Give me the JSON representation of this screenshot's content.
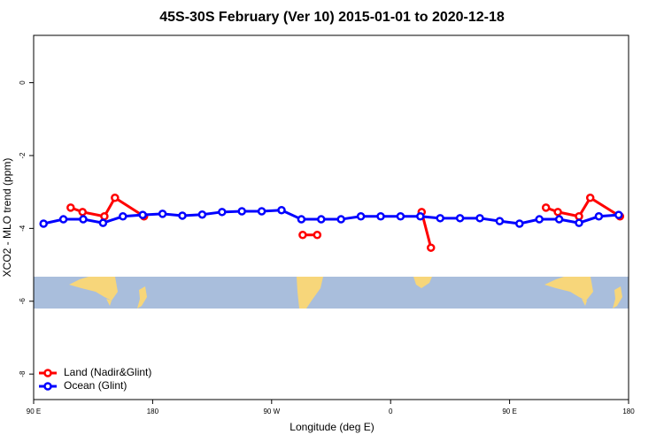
{
  "chart_data": {
    "type": "line",
    "title": "45S-30S February (Ver 10)   2015-01-01 to 2020-12-18",
    "x_label": "Longitude (deg E)",
    "y_label": "XCO2 - MLO trend (ppm)",
    "xlim": [
      90,
      540
    ],
    "xticks": [
      {
        "value": 90,
        "label": "90 E"
      },
      {
        "value": 180,
        "label": "180"
      },
      {
        "value": 270,
        "label": "90 W"
      },
      {
        "value": 360,
        "label": "0"
      },
      {
        "value": 450,
        "label": "90 E"
      },
      {
        "value": 540,
        "label": "180"
      }
    ],
    "ylim": [
      -8.7,
      1.3
    ],
    "yticks": [
      0,
      -2,
      -4,
      -6,
      -8
    ],
    "legend": "bottom-left",
    "series": [
      {
        "name": "Land (Nadir&Glint)",
        "color": "#ff0000",
        "x": [
          118,
          127,
          143.5,
          151.5,
          173.5,
          null,
          293.5,
          304.5,
          null,
          383.5,
          390.5,
          null,
          477.5,
          486.5,
          502.5,
          511,
          533.5
        ],
        "values": [
          -3.43,
          -3.55,
          -3.67,
          -3.16,
          -3.67,
          null,
          -4.18,
          -4.18,
          null,
          -3.55,
          -4.53,
          null,
          -3.43,
          -3.55,
          -3.67,
          -3.16,
          -3.67
        ]
      },
      {
        "name": "Ocean (Glint)",
        "color": "#0000ff",
        "x": [
          97.5,
          112.5,
          127.5,
          142.5,
          157.5,
          172.5,
          187.5,
          202.5,
          217.5,
          232.5,
          247.5,
          262.5,
          277.5,
          292.5,
          307.5,
          322.5,
          337.5,
          352.5,
          367.5,
          382.5,
          397.5,
          412.5,
          427.5,
          442.5,
          457.5,
          472.5,
          487.5,
          502.5,
          517.5,
          532.5
        ],
        "values": [
          -3.87,
          -3.75,
          -3.75,
          -3.85,
          -3.67,
          -3.63,
          -3.6,
          -3.65,
          -3.62,
          -3.55,
          -3.53,
          -3.53,
          -3.5,
          -3.75,
          -3.75,
          -3.75,
          -3.67,
          -3.67,
          -3.67,
          -3.67,
          -3.72,
          -3.72,
          -3.72,
          -3.8,
          -3.87,
          -3.75,
          -3.75,
          -3.85,
          -3.67,
          -3.63
        ]
      }
    ]
  }
}
